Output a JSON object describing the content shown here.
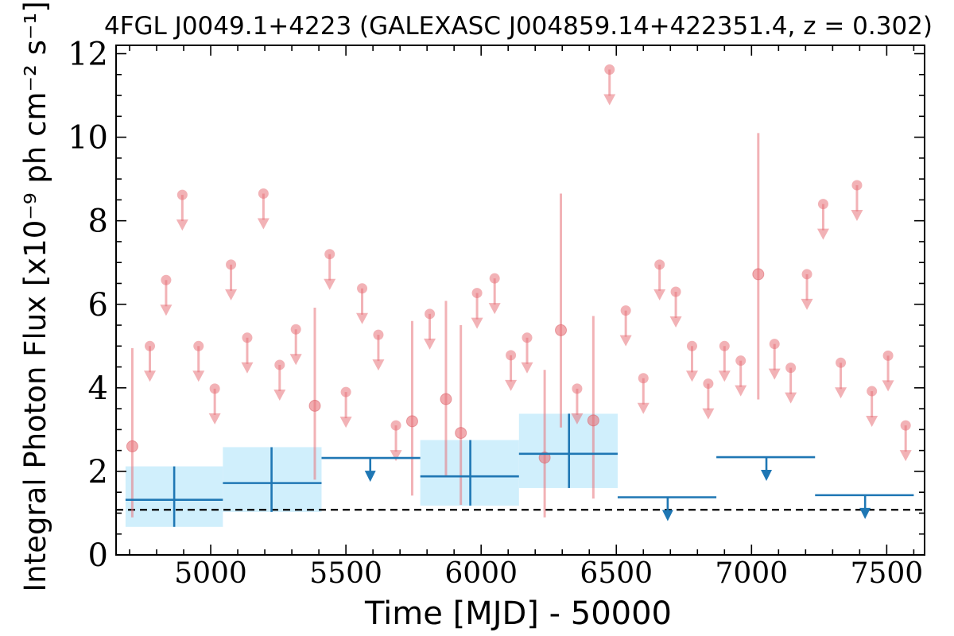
{
  "chart_data": {
    "type": "scatter",
    "title": "4FGL J0049.1+4223 (GALEXASC J004859.14+422351.4, z = 0.302)",
    "xlabel": "Time [MJD] - 50000",
    "ylabel": "Integral Photon Flux [x10⁻⁹ ph cm⁻² s⁻¹]",
    "xlim": [
      4650,
      7640
    ],
    "ylim": [
      0,
      12.2
    ],
    "xticks": [
      5000,
      5500,
      6000,
      6500,
      7000,
      7500
    ],
    "yticks": [
      0,
      2,
      4,
      6,
      8,
      10,
      12
    ],
    "reference_line": {
      "y": 1.08,
      "style": "dashed",
      "color": "#000000"
    },
    "colors": {
      "short_bin": "#e8737a",
      "long_bin": "#1f77b4",
      "long_bin_band": "#cdeefc"
    },
    "series": [
      {
        "bin": "short",
        "detections": [
          {
            "x": 4710,
            "y": 2.6,
            "ylo": 0.9,
            "yhi": 4.95
          },
          {
            "x": 5385,
            "y": 3.57,
            "ylo": 1.8,
            "yhi": 5.92
          },
          {
            "x": 5745,
            "y": 3.2,
            "ylo": 1.42,
            "yhi": 5.6
          },
          {
            "x": 5870,
            "y": 3.73,
            "ylo": 1.9,
            "yhi": 6.08
          },
          {
            "x": 5925,
            "y": 2.92,
            "ylo": 1.2,
            "yhi": 5.5
          },
          {
            "x": 6235,
            "y": 2.33,
            "ylo": 0.9,
            "yhi": 4.43
          },
          {
            "x": 6295,
            "y": 5.38,
            "ylo": 3.05,
            "yhi": 8.65
          },
          {
            "x": 6415,
            "y": 3.22,
            "ylo": 1.35,
            "yhi": 5.72
          },
          {
            "x": 7025,
            "y": 6.72,
            "ylo": 3.72,
            "yhi": 10.1
          }
        ],
        "upper_limits": [
          {
            "x": 4775,
            "y": 5.0
          },
          {
            "x": 4835,
            "y": 6.58
          },
          {
            "x": 4895,
            "y": 8.62
          },
          {
            "x": 4955,
            "y": 5.0
          },
          {
            "x": 5015,
            "y": 3.98
          },
          {
            "x": 5075,
            "y": 6.95
          },
          {
            "x": 5135,
            "y": 5.2
          },
          {
            "x": 5195,
            "y": 8.65
          },
          {
            "x": 5255,
            "y": 4.55
          },
          {
            "x": 5315,
            "y": 5.4
          },
          {
            "x": 5440,
            "y": 7.2
          },
          {
            "x": 5500,
            "y": 3.9
          },
          {
            "x": 5560,
            "y": 6.38
          },
          {
            "x": 5620,
            "y": 5.27
          },
          {
            "x": 5685,
            "y": 3.1
          },
          {
            "x": 5810,
            "y": 5.77
          },
          {
            "x": 5985,
            "y": 6.27
          },
          {
            "x": 6050,
            "y": 6.62
          },
          {
            "x": 6110,
            "y": 4.78
          },
          {
            "x": 6170,
            "y": 5.2
          },
          {
            "x": 6355,
            "y": 3.98
          },
          {
            "x": 6475,
            "y": 11.62
          },
          {
            "x": 6535,
            "y": 5.85
          },
          {
            "x": 6600,
            "y": 4.23
          },
          {
            "x": 6660,
            "y": 6.95
          },
          {
            "x": 6720,
            "y": 6.3
          },
          {
            "x": 6780,
            "y": 5.0
          },
          {
            "x": 6840,
            "y": 4.1
          },
          {
            "x": 6900,
            "y": 5.0
          },
          {
            "x": 6960,
            "y": 4.65
          },
          {
            "x": 7085,
            "y": 5.05
          },
          {
            "x": 7145,
            "y": 4.48
          },
          {
            "x": 7205,
            "y": 6.72
          },
          {
            "x": 7265,
            "y": 8.4
          },
          {
            "x": 7330,
            "y": 4.6
          },
          {
            "x": 7390,
            "y": 8.85
          },
          {
            "x": 7445,
            "y": 3.92
          },
          {
            "x": 7505,
            "y": 4.77
          },
          {
            "x": 7570,
            "y": 3.1
          }
        ]
      },
      {
        "bin": "long",
        "detections": [
          {
            "x": 4865,
            "xlo": 4685,
            "xhi": 5045,
            "y": 1.32,
            "ylo": 0.67,
            "yhi": 2.12
          },
          {
            "x": 5225,
            "xlo": 5045,
            "xhi": 5410,
            "y": 1.72,
            "ylo": 1.03,
            "yhi": 2.58
          },
          {
            "x": 5960,
            "xlo": 5775,
            "xhi": 6140,
            "y": 1.88,
            "ylo": 1.18,
            "yhi": 2.75
          },
          {
            "x": 6325,
            "xlo": 6140,
            "xhi": 6505,
            "y": 2.42,
            "ylo": 1.6,
            "yhi": 3.38
          }
        ],
        "upper_limits": [
          {
            "x": 5590,
            "xlo": 5410,
            "xhi": 5775,
            "y": 2.32
          },
          {
            "x": 6690,
            "xlo": 6505,
            "xhi": 6870,
            "y": 1.38
          },
          {
            "x": 7055,
            "xlo": 6870,
            "xhi": 7235,
            "y": 2.34
          },
          {
            "x": 7420,
            "xlo": 7235,
            "xhi": 7600,
            "y": 1.43
          }
        ]
      }
    ]
  }
}
